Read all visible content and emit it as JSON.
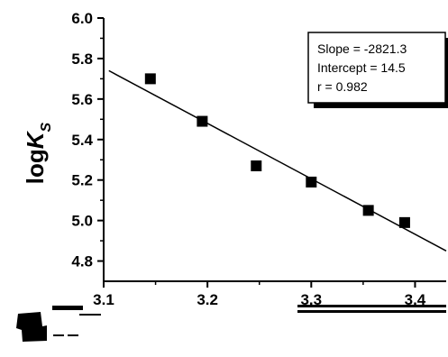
{
  "chart_data": {
    "type": "scatter",
    "title": "",
    "xlabel": "",
    "ylabel_main": "log",
    "ylabel_italic": "K",
    "ylabel_sub": "S",
    "xlim": [
      3.1,
      3.43
    ],
    "ylim": [
      4.7,
      6.0
    ],
    "xticks": [
      3.1,
      3.2,
      3.3,
      3.4
    ],
    "xtick_labels": [
      "3.1",
      "3.2",
      "3.3",
      "3.4"
    ],
    "yticks": [
      4.8,
      5.0,
      5.2,
      5.4,
      5.6,
      5.8,
      6.0
    ],
    "ytick_labels": [
      "4.8",
      "5.0",
      "5.2",
      "5.4",
      "5.6",
      "5.8",
      "6.0"
    ],
    "grid": false,
    "series": [
      {
        "marker": "square",
        "color": "#000000",
        "x": [
          3.145,
          3.195,
          3.247,
          3.3,
          3.355,
          3.39
        ],
        "y": [
          5.7,
          5.49,
          5.27,
          5.19,
          5.05,
          4.99
        ]
      }
    ],
    "fit_line": {
      "x": [
        3.105,
        3.43
      ],
      "y": [
        5.74,
        4.85
      ]
    },
    "annotations": [
      "Slope = -2821.3",
      "Intercept = 14.5",
      "r = 0.982"
    ]
  }
}
